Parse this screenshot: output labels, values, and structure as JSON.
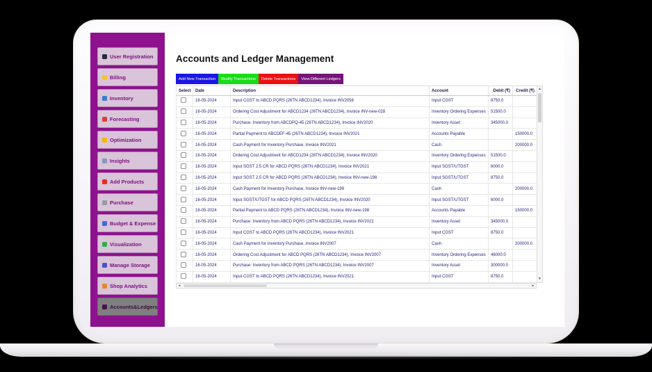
{
  "sidebar": {
    "items": [
      {
        "name": "user-registration",
        "label": "User Registration",
        "icon": "user-icon",
        "icon_color": "#2b2b3e",
        "selected": false
      },
      {
        "name": "billing",
        "label": "Billing",
        "icon": "billing-ledger-icon",
        "icon_color": "#f4c430",
        "selected": false
      },
      {
        "name": "inventory",
        "label": "Inventory",
        "icon": "inventory-box-icon",
        "icon_color": "#3b7bd4",
        "selected": false
      },
      {
        "name": "forecasting",
        "label": "Forecasting",
        "icon": "forecast-chart-icon",
        "icon_color": "#d94040",
        "selected": false
      },
      {
        "name": "optimization",
        "label": "Optimization",
        "icon": "lightbulb-icon",
        "icon_color": "#f5b800",
        "selected": false
      },
      {
        "name": "insights",
        "label": "Insights",
        "icon": "insights-icon",
        "icon_color": "#8899bb",
        "selected": false
      },
      {
        "name": "add-products",
        "label": "Add Products",
        "icon": "flag-icon",
        "icon_color": "#e03020",
        "selected": false
      },
      {
        "name": "purchase",
        "label": "Purchase",
        "icon": "cart-icon",
        "icon_color": "#9a9aa6",
        "selected": false
      },
      {
        "name": "budget-expense",
        "label": "Budget & Expense",
        "icon": "banknote-icon",
        "icon_color": "#3f6fd0",
        "selected": false
      },
      {
        "name": "visualization",
        "label": "Visualization",
        "icon": "bar-chart-icon",
        "icon_color": "#2fae4a",
        "selected": false
      },
      {
        "name": "manage-storage",
        "label": "Manage Storage",
        "icon": "storage-disk-icon",
        "icon_color": "#4757c8",
        "selected": false
      },
      {
        "name": "shop-analytics",
        "label": "Shop Analytics",
        "icon": "shop-analytics-icon",
        "icon_color": "#e08a2e",
        "selected": false
      },
      {
        "name": "accounts-ledgers",
        "label": "Accounts&Ledgers",
        "icon": "ledger-book-icon",
        "icon_color": "#4a1050",
        "selected": true
      }
    ]
  },
  "main": {
    "title": "Accounts and Ledger Management",
    "toolbar": [
      {
        "name": "add-new-transaction",
        "label": "Add New Transaction",
        "color": "#1b16e3"
      },
      {
        "name": "modify-transactions",
        "label": "Modify Transactions",
        "color": "#17dd17"
      },
      {
        "name": "delete-transactions",
        "label": "Delete Transactions",
        "color": "#ec1111"
      },
      {
        "name": "view-different-ledgers",
        "label": "View Different Ledgers",
        "color": "#741478"
      }
    ],
    "table": {
      "headers": [
        "Select",
        "Date",
        "Description",
        "Account",
        "Debit (₹)",
        "Credit (₹)"
      ],
      "rows": [
        {
          "date": "16-05-2024",
          "desc": "Input CGST to ABCD PQRS (26TN ABCD1234), Invoice INV2056",
          "account": "Input CGST",
          "debit": "8750.0",
          "credit": "",
          "sep": false
        },
        {
          "date": "16-05-2024",
          "desc": "Ordering Cost Adjustment for ABCD1234 (26TN ABCD1234), Invoice INV-new-028",
          "account": "Inventory Ordering Expenses",
          "debit": "51500.0",
          "credit": "",
          "sep": false
        },
        {
          "date": "16-05-2024",
          "desc": "Purchase: Inventory from ABCDPQ-45 (26TN ABCD1234), Invoice INV2020",
          "account": "Inventory Asset",
          "debit": "345000.0",
          "credit": "",
          "sep": true
        },
        {
          "date": "16-05-2024",
          "desc": "Partial Payment to ABCDEF-45 (26TN ABCD1234), Invoice INV2021",
          "account": "Accounts Payable",
          "debit": "",
          "credit": "150000.0",
          "sep": false
        },
        {
          "date": "16-05-2024",
          "desc": "Cash Payment for Inventory Purchase, Invoice INV2021",
          "account": "Cash",
          "debit": "",
          "credit": "200000.0",
          "sep": false
        },
        {
          "date": "16-05-2024",
          "desc": "Ordering Cost Adjustment for ABCD1234 (26TN ABCD1234), Invoice INV2020",
          "account": "Inventory Ordering Expenses",
          "debit": "51500.0",
          "credit": "",
          "sep": false
        },
        {
          "date": "16-05-2024",
          "desc": "Input SGST 2.5 CR for ABCD PQRS (26TN ABCD1234), Invoice INV2021",
          "account": "Input SGST/UTGST",
          "debit": "6000.0",
          "credit": "",
          "sep": true
        },
        {
          "date": "16-05-2024",
          "desc": "Input SGST 2.5 CR for ABCD PQRS (26TN ABCD1234), Invoice INV-new-198",
          "account": "Input SGST/UTGST",
          "debit": "8750.0",
          "credit": "",
          "sep": false
        },
        {
          "date": "16-05-2024",
          "desc": "Cash Payment for Inventory Purchase, Invoice INV-new-199",
          "account": "Cash",
          "debit": "",
          "credit": "200000.0",
          "sep": true
        },
        {
          "date": "16-05-2024",
          "desc": "Input SGST/UTGST for ABCD PQRS (26TN ABCD1234), Invoice INV2020",
          "account": "Input SGST/UTGST",
          "debit": "6000.0",
          "credit": "",
          "sep": false
        },
        {
          "date": "16-05-2024",
          "desc": "Partial Payment to ABCD PQRS (26TN ABCD1234), Invoice INV-new-198",
          "account": "Accounts Payable",
          "debit": "",
          "credit": "150000.0",
          "sep": false
        },
        {
          "date": "16-05-2024",
          "desc": "Purchase: Inventory from ABCD PQRS (26TN ABCD1234), Invoice INV2021",
          "account": "Inventory Asset",
          "debit": "345000.0",
          "credit": "",
          "sep": true
        },
        {
          "date": "16-05-2024",
          "desc": "Input CGST to ABCD PQRS (26TN ABCD1234), Invoice INV2021",
          "account": "Input CGST",
          "debit": "8750.0",
          "credit": "",
          "sep": false
        },
        {
          "date": "16-05-2024",
          "desc": "Cash Payment for Inventory Purchase, Invoice INV2007",
          "account": "Cash",
          "debit": "",
          "credit": "200000.0",
          "sep": true
        },
        {
          "date": "16-05-2024",
          "desc": "Ordering Cost Adjustment for ABCD PQRS (26TN ABCD1234), Invoice INV2007",
          "account": "Inventory Ordering Expenses",
          "debit": "46000.0",
          "credit": "",
          "sep": false
        },
        {
          "date": "16-05-2024",
          "desc": "Purchase: Inventory from ABCD PQRS (26TN ABCD1234), Invoice INV2007",
          "account": "Inventory Asset",
          "debit": "300000.0",
          "credit": "",
          "sep": false
        },
        {
          "date": "16-05-2024",
          "desc": "Input CGST to ABCD PQRS (26TN ABCD1234), Invoice INV2021",
          "account": "Input CGST",
          "debit": "8750.0",
          "credit": "",
          "sep": false
        }
      ]
    }
  },
  "colors": {
    "sidebar_bg": "#8e128e",
    "sidebar_button_bg": "#d9c4d9",
    "sidebar_button_text": "#7d0f7d",
    "selected_button_bg": "#7f7f7f",
    "table_text": "#24247c"
  }
}
